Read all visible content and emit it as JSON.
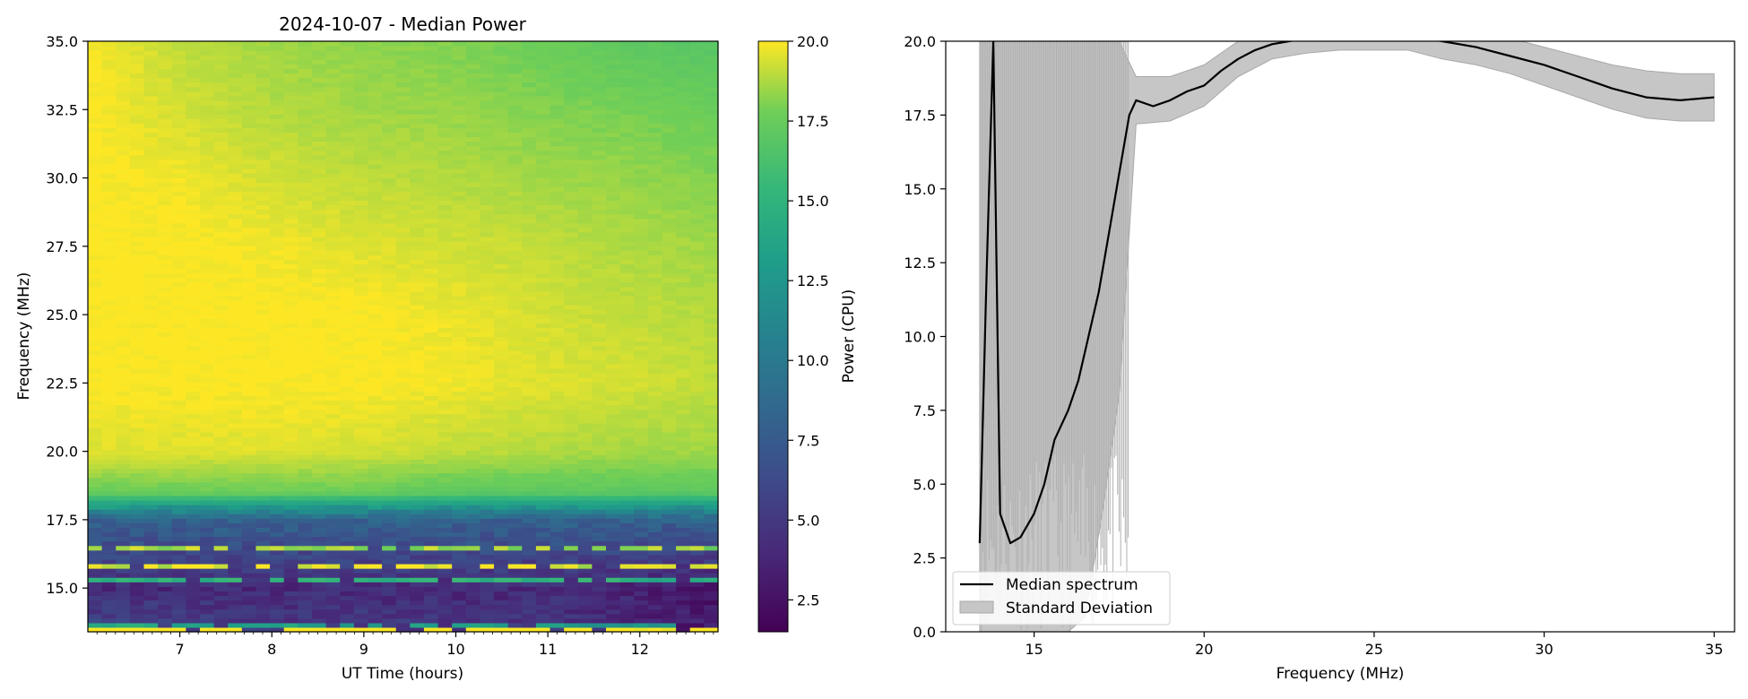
{
  "chart_data": [
    {
      "type": "heatmap",
      "title": "2024-10-07 - Median Power",
      "xlabel": "UT Time (hours)",
      "ylabel": "Frequency (MHz)",
      "xlim": [
        6.0,
        12.85
      ],
      "ylim": [
        13.4,
        35.0
      ],
      "xticks": [
        7,
        8,
        9,
        10,
        11,
        12
      ],
      "yticks": [
        15.0,
        17.5,
        20.0,
        22.5,
        25.0,
        27.5,
        30.0,
        32.5,
        35.0
      ],
      "colormap": "viridis",
      "description_of_field": "Power saturated (~20) above ~21.5 MHz, slightly lower (~17-18) at upper-right times; a transition band near 18 MHz; mostly low power (~3-6) with bright interference lines between 13.4 and 18 MHz.",
      "field": {
        "times": [
          6.0,
          7.0,
          8.0,
          9.0,
          10.0,
          11.0,
          12.0,
          12.85
        ],
        "frequencies": [
          13.4,
          15.0,
          17.5,
          18.5,
          20.0,
          22.5,
          25.0,
          27.5,
          30.0,
          32.5,
          35.0
        ],
        "values": [
          [
            6.0,
            4.0,
            8.0,
            17.5,
            19.5,
            20.0,
            20.0,
            20.0,
            20.0,
            20.0,
            20.0
          ],
          [
            5.5,
            4.0,
            8.0,
            17.5,
            19.5,
            20.0,
            20.0,
            20.0,
            19.8,
            19.3,
            19.0
          ],
          [
            5.0,
            4.0,
            8.0,
            17.5,
            19.5,
            20.0,
            20.0,
            19.8,
            19.3,
            18.8,
            18.5
          ],
          [
            5.0,
            4.0,
            8.0,
            17.5,
            19.3,
            20.0,
            20.0,
            19.5,
            19.0,
            18.5,
            18.2
          ],
          [
            5.0,
            4.0,
            8.0,
            17.0,
            19.0,
            19.8,
            19.7,
            19.3,
            18.8,
            18.3,
            18.0
          ],
          [
            5.0,
            4.0,
            8.0,
            17.0,
            18.8,
            19.5,
            19.3,
            19.0,
            18.5,
            18.0,
            17.5
          ],
          [
            3.5,
            3.5,
            8.0,
            17.0,
            18.5,
            19.3,
            19.0,
            18.7,
            18.3,
            17.8,
            17.0
          ],
          [
            3.0,
            3.0,
            8.0,
            17.0,
            18.5,
            19.0,
            18.8,
            18.5,
            18.0,
            17.5,
            16.8
          ]
        ]
      },
      "colorbar": {
        "label": "Power (CPU)",
        "range": [
          1.5,
          20.0
        ],
        "ticks": [
          2.5,
          5.0,
          7.5,
          10.0,
          12.5,
          15.0,
          17.5,
          20.0
        ]
      }
    },
    {
      "type": "line",
      "xlabel": "Frequency (MHz)",
      "ylabel": "",
      "xlim": [
        12.4,
        35.6
      ],
      "ylim": [
        0.0,
        20.0
      ],
      "xticks": [
        15,
        20,
        25,
        30,
        35
      ],
      "yticks": [
        0.0,
        2.5,
        5.0,
        7.5,
        10.0,
        12.5,
        15.0,
        17.5,
        20.0
      ],
      "grid": false,
      "legend_position": "lower-left",
      "series": [
        {
          "name": "Median spectrum",
          "style": "line",
          "color": "#000000",
          "x": [
            13.4,
            13.5,
            13.6,
            13.8,
            14.0,
            14.3,
            14.6,
            15.0,
            15.3,
            15.6,
            16.0,
            16.3,
            16.6,
            16.9,
            17.2,
            17.5,
            17.8,
            18.0,
            18.5,
            19.0,
            19.5,
            20.0,
            20.5,
            21.0,
            21.5,
            22.0,
            22.5,
            23.0,
            24.0,
            25.0,
            26.0,
            27.0,
            28.0,
            29.0,
            30.0,
            31.0,
            32.0,
            33.0,
            34.0,
            35.0
          ],
          "y": [
            3.0,
            7.5,
            12.0,
            20.0,
            4.0,
            3.0,
            3.2,
            4.0,
            5.0,
            6.5,
            7.5,
            8.5,
            10.0,
            11.5,
            13.5,
            15.5,
            17.5,
            18.0,
            17.8,
            18.0,
            18.3,
            18.5,
            19.0,
            19.4,
            19.7,
            19.9,
            20.0,
            20.1,
            20.2,
            20.2,
            20.2,
            20.0,
            19.8,
            19.5,
            19.2,
            18.8,
            18.4,
            18.1,
            18.0,
            18.1
          ]
        },
        {
          "name": "Standard Deviation",
          "style": "band",
          "color": "#c6c6c6",
          "x": [
            13.4,
            13.6,
            14.0,
            14.5,
            15.0,
            15.5,
            16.0,
            16.5,
            17.0,
            17.5,
            18.0,
            19.0,
            20.0,
            21.0,
            22.0,
            23.0,
            24.0,
            25.0,
            26.0,
            27.0,
            28.0,
            29.0,
            30.0,
            31.0,
            32.0,
            33.0,
            34.0,
            35.0
          ],
          "lower": [
            0.0,
            0.0,
            0.0,
            0.0,
            0.0,
            0.0,
            0.0,
            0.5,
            4.0,
            8.0,
            17.2,
            17.3,
            17.8,
            18.8,
            19.4,
            19.6,
            19.7,
            19.7,
            19.7,
            19.4,
            19.2,
            18.9,
            18.5,
            18.1,
            17.7,
            17.4,
            17.3,
            17.3
          ],
          "upper": [
            20.0,
            20.0,
            20.0,
            20.0,
            20.0,
            20.0,
            20.0,
            20.0,
            20.0,
            20.0,
            18.8,
            18.8,
            19.2,
            20.0,
            20.5,
            20.6,
            20.7,
            20.7,
            20.7,
            20.6,
            20.4,
            20.1,
            19.8,
            19.5,
            19.2,
            19.0,
            18.9,
            18.9
          ]
        }
      ]
    }
  ]
}
